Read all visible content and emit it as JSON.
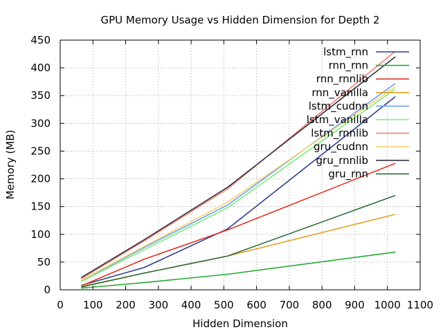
{
  "chart_data": {
    "type": "line",
    "title": "GPU Memory Usage vs Hidden Dimension for Depth 2",
    "xlabel": "Hidden Dimension",
    "ylabel": "Memory (MB)",
    "xlim": [
      0,
      1100
    ],
    "ylim": [
      0,
      450
    ],
    "xticks": [
      0,
      100,
      200,
      300,
      400,
      500,
      600,
      700,
      800,
      900,
      1000,
      1100
    ],
    "yticks": [
      0,
      50,
      100,
      150,
      200,
      250,
      300,
      350,
      400,
      450
    ],
    "grid": true,
    "legend_position": "top-right",
    "x": [
      64,
      256,
      512,
      1024
    ],
    "series": [
      {
        "name": "lstm_rnn",
        "color": "#2a3d8f",
        "values": [
          8,
          40,
          110,
          348
        ]
      },
      {
        "name": "rnn_rnn",
        "color": "#22aa33",
        "values": [
          3,
          13,
          28,
          68
        ]
      },
      {
        "name": "rnn_rnnlib",
        "color": "#dd3322",
        "values": [
          7,
          55,
          108,
          228
        ]
      },
      {
        "name": "rnn_vanilla",
        "color": "#e0a020",
        "values": [
          6,
          30,
          61,
          136
        ]
      },
      {
        "name": "lstm_cudnn",
        "color": "#6fa0f0",
        "values": [
          16,
          76,
          153,
          372
        ]
      },
      {
        "name": "lstm_vanilla",
        "color": "#77ee77",
        "values": [
          15,
          72,
          148,
          362
        ]
      },
      {
        "name": "lstm_rnnlib",
        "color": "#f08070",
        "values": [
          20,
          88,
          182,
          430
        ]
      },
      {
        "name": "gru_cudnn",
        "color": "#fad070",
        "values": [
          17,
          78,
          158,
          366
        ]
      },
      {
        "name": "gru_rnnlib",
        "color": "#333344",
        "values": [
          22,
          90,
          185,
          420
        ]
      },
      {
        "name": "gru_rnn",
        "color": "#2b6b3a",
        "values": [
          5,
          30,
          61,
          170
        ]
      }
    ]
  }
}
